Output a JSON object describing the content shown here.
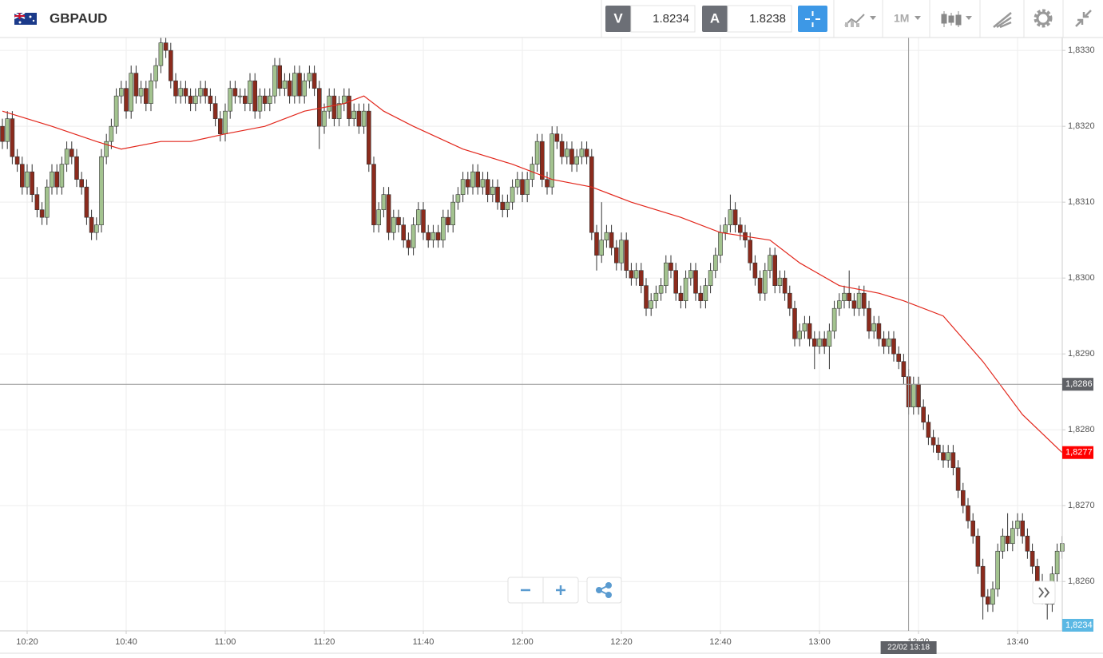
{
  "toolbar": {
    "symbol": "GBPAUD",
    "sell_label": "V",
    "sell": 1.8234,
    "buy_label": "A",
    "buy": 1.8238,
    "timeframe": "1M"
  },
  "chart_data": {
    "type": "candlestick",
    "categories": [
      "10:15",
      "10:16",
      "10:17",
      "10:18",
      "10:19",
      "10:20",
      "10:21",
      "10:22",
      "10:23",
      "10:24",
      "10:25",
      "10:26",
      "10:27",
      "10:28",
      "10:29",
      "10:30",
      "10:31",
      "10:32",
      "10:33",
      "10:34",
      "10:35",
      "10:36",
      "10:37",
      "10:38",
      "10:39",
      "10:40",
      "10:41",
      "10:42",
      "10:43",
      "10:44",
      "10:45",
      "10:46",
      "10:47",
      "10:48",
      "10:49",
      "10:50",
      "10:51",
      "10:52",
      "10:53",
      "10:54",
      "10:55",
      "10:56",
      "10:57",
      "10:58",
      "10:59",
      "11:00",
      "11:01",
      "11:02",
      "11:03",
      "11:04",
      "11:05",
      "11:06",
      "11:07",
      "11:08",
      "11:09",
      "11:10",
      "11:11",
      "11:12",
      "11:13",
      "11:14",
      "11:15",
      "11:16",
      "11:17",
      "11:18",
      "11:19",
      "11:20",
      "11:21",
      "11:22",
      "11:23",
      "11:24",
      "11:25",
      "11:26",
      "11:27",
      "11:28",
      "11:29",
      "11:30",
      "11:31",
      "11:32",
      "11:33",
      "11:34",
      "11:35",
      "11:36",
      "11:37",
      "11:38",
      "11:39",
      "11:40",
      "11:41",
      "11:42",
      "11:43",
      "11:44",
      "11:45",
      "11:46",
      "11:47",
      "11:48",
      "11:49",
      "11:50",
      "11:51",
      "11:52",
      "11:53",
      "11:54",
      "11:55",
      "11:56",
      "11:57",
      "11:58",
      "11:59",
      "12:00",
      "12:01",
      "12:02",
      "12:03",
      "12:04",
      "12:05",
      "12:06",
      "12:07",
      "12:08",
      "12:09",
      "12:10",
      "12:11",
      "12:12",
      "12:13",
      "12:14",
      "12:15",
      "12:16",
      "12:17",
      "12:18",
      "12:19",
      "12:20",
      "12:21",
      "12:22",
      "12:23",
      "12:24",
      "12:25",
      "12:26",
      "12:27",
      "12:28",
      "12:29",
      "12:30",
      "12:31",
      "12:32",
      "12:33",
      "12:34",
      "12:35",
      "12:36",
      "12:37",
      "12:38",
      "12:39",
      "12:40",
      "12:41",
      "12:42",
      "12:43",
      "12:44",
      "12:45",
      "12:46",
      "12:47",
      "12:48",
      "12:49",
      "12:50",
      "12:51",
      "12:52",
      "12:53",
      "12:54",
      "12:55",
      "12:56",
      "12:57",
      "12:58",
      "12:59",
      "13:00",
      "13:01",
      "13:02",
      "13:03",
      "13:04",
      "13:05",
      "13:06",
      "13:07",
      "13:08",
      "13:09",
      "13:10",
      "13:11",
      "13:12",
      "13:13",
      "13:14",
      "13:15",
      "13:16",
      "13:17",
      "13:18",
      "13:19",
      "13:20",
      "13:21",
      "13:22",
      "13:23",
      "13:24",
      "13:25",
      "13:26",
      "13:27",
      "13:28",
      "13:29",
      "13:30",
      "13:31",
      "13:32",
      "13:33",
      "13:34",
      "13:35",
      "13:36",
      "13:37",
      "13:38",
      "13:39",
      "13:40",
      "13:41",
      "13:42",
      "13:43",
      "13:44",
      "13:45",
      "13:46",
      "13:47",
      "13:48",
      "13:49"
    ],
    "open": [
      1.832,
      1.8318,
      1.8321,
      1.8316,
      1.8315,
      1.8312,
      1.8314,
      1.8311,
      1.8309,
      1.8308,
      1.8312,
      1.8314,
      1.8312,
      1.8315,
      1.8317,
      1.8316,
      1.8313,
      1.8312,
      1.8308,
      1.8306,
      1.8307,
      1.8316,
      1.8318,
      1.832,
      1.8324,
      1.8325,
      1.8322,
      1.8327,
      1.8324,
      1.8325,
      1.8323,
      1.8326,
      1.8328,
      1.8331,
      1.833,
      1.8326,
      1.8324,
      1.8325,
      1.8324,
      1.8323,
      1.8324,
      1.8325,
      1.8324,
      1.8323,
      1.8321,
      1.8319,
      1.8322,
      1.8325,
      1.8324,
      1.8324,
      1.8323,
      1.8326,
      1.8322,
      1.8324,
      1.8323,
      1.8324,
      1.8328,
      1.8325,
      1.8326,
      1.8324,
      1.8327,
      1.8324,
      1.8326,
      1.8327,
      1.8325,
      1.832,
      1.8322,
      1.8324,
      1.8321,
      1.8323,
      1.8324,
      1.8321,
      1.8322,
      1.832,
      1.8322,
      1.8315,
      1.8307,
      1.8309,
      1.8311,
      1.8306,
      1.8308,
      1.8307,
      1.8305,
      1.8304,
      1.8307,
      1.8309,
      1.8306,
      1.8305,
      1.8306,
      1.8305,
      1.8308,
      1.8307,
      1.831,
      1.8311,
      1.8313,
      1.8312,
      1.8314,
      1.8312,
      1.8313,
      1.8311,
      1.8312,
      1.831,
      1.8309,
      1.831,
      1.8312,
      1.8313,
      1.8311,
      1.8313,
      1.8315,
      1.8318,
      1.8313,
      1.8312,
      1.8319,
      1.8318,
      1.8316,
      1.8317,
      1.8315,
      1.8316,
      1.8317,
      1.8316,
      1.8306,
      1.8303,
      1.8305,
      1.8306,
      1.8304,
      1.8302,
      1.8305,
      1.8301,
      1.83,
      1.8301,
      1.8299,
      1.8296,
      1.8297,
      1.8298,
      1.8299,
      1.8302,
      1.8301,
      1.8298,
      1.8297,
      1.83,
      1.8301,
      1.8298,
      1.8297,
      1.8299,
      1.8301,
      1.8303,
      1.8306,
      1.8307,
      1.8309,
      1.8307,
      1.8306,
      1.8305,
      1.8302,
      1.83,
      1.8298,
      1.8301,
      1.8303,
      1.8299,
      1.83,
      1.8298,
      1.8296,
      1.8292,
      1.8293,
      1.8294,
      1.8292,
      1.8291,
      1.8292,
      1.8291,
      1.8293,
      1.8296,
      1.8297,
      1.8298,
      1.8297,
      1.8296,
      1.8298,
      1.8296,
      1.8293,
      1.8294,
      1.8292,
      1.8291,
      1.8292,
      1.829,
      1.8289,
      1.8287,
      1.8283,
      1.8286,
      1.8283,
      1.8281,
      1.8279,
      1.8278,
      1.8277,
      1.8276,
      1.8277,
      1.8275,
      1.8272,
      1.827,
      1.8268,
      1.8266,
      1.8262,
      1.8258,
      1.8257,
      1.8259,
      1.8264,
      1.8266,
      1.8265,
      1.8267,
      1.8268,
      1.8266,
      1.8264,
      1.8262,
      1.826,
      1.8258,
      1.8257,
      1.8261,
      1.8264
    ],
    "high": [
      1.8321,
      1.8322,
      1.8322,
      1.8317,
      1.8316,
      1.8315,
      1.8315,
      1.8312,
      1.831,
      1.8313,
      1.8315,
      1.8315,
      1.8316,
      1.8318,
      1.8318,
      1.8317,
      1.8314,
      1.8313,
      1.8309,
      1.8308,
      1.8317,
      1.8319,
      1.8321,
      1.8325,
      1.8326,
      1.8326,
      1.8328,
      1.8328,
      1.8326,
      1.8326,
      1.8327,
      1.8329,
      1.8332,
      1.8332,
      1.8331,
      1.8327,
      1.8326,
      1.8326,
      1.8325,
      1.8325,
      1.8326,
      1.8326,
      1.8325,
      1.8324,
      1.8322,
      1.8323,
      1.8326,
      1.8326,
      1.8325,
      1.8325,
      1.8327,
      1.8327,
      1.8325,
      1.8325,
      1.8325,
      1.8329,
      1.8329,
      1.8327,
      1.8327,
      1.8328,
      1.8328,
      1.8327,
      1.8328,
      1.8328,
      1.8326,
      1.8323,
      1.8325,
      1.8325,
      1.8324,
      1.8325,
      1.8325,
      1.8323,
      1.8323,
      1.8323,
      1.8323,
      1.8316,
      1.831,
      1.8312,
      1.8312,
      1.8309,
      1.8309,
      1.8308,
      1.8306,
      1.8308,
      1.831,
      1.831,
      1.8307,
      1.8307,
      1.8307,
      1.8309,
      1.8309,
      1.8311,
      1.8312,
      1.8314,
      1.8314,
      1.8315,
      1.8315,
      1.8314,
      1.8314,
      1.8313,
      1.8313,
      1.8311,
      1.8311,
      1.8313,
      1.8314,
      1.8314,
      1.8314,
      1.8316,
      1.8319,
      1.8319,
      1.8314,
      1.832,
      1.832,
      1.8319,
      1.8318,
      1.8318,
      1.8317,
      1.8318,
      1.8318,
      1.8317,
      1.8307,
      1.831,
      1.8307,
      1.8307,
      1.8305,
      1.8306,
      1.8306,
      1.8302,
      1.8302,
      1.8302,
      1.83,
      1.8298,
      1.8299,
      1.83,
      1.8303,
      1.8303,
      1.8302,
      1.8299,
      1.8301,
      1.8302,
      1.8302,
      1.8299,
      1.83,
      1.8302,
      1.8304,
      1.8307,
      1.8308,
      1.8311,
      1.831,
      1.8308,
      1.8307,
      1.8306,
      1.8303,
      1.8301,
      1.8302,
      1.8304,
      1.8304,
      1.8301,
      1.8301,
      1.8299,
      1.8297,
      1.8294,
      1.8295,
      1.8295,
      1.8293,
      1.8293,
      1.8293,
      1.8294,
      1.8297,
      1.8298,
      1.8299,
      1.8301,
      1.8298,
      1.8299,
      1.8299,
      1.8297,
      1.8295,
      1.8295,
      1.8293,
      1.8293,
      1.8293,
      1.8291,
      1.829,
      1.8288,
      1.8287,
      1.8287,
      1.8284,
      1.8282,
      1.828,
      1.8279,
      1.8278,
      1.8278,
      1.8278,
      1.8276,
      1.8273,
      1.8271,
      1.8269,
      1.8267,
      1.8263,
      1.8259,
      1.826,
      1.8265,
      1.8267,
      1.8269,
      1.8268,
      1.8269,
      1.8269,
      1.8267,
      1.8265,
      1.8263,
      1.8261,
      1.8259,
      1.8262,
      1.8265,
      1.8266
    ],
    "low": [
      1.8317,
      1.8317,
      1.8315,
      1.8314,
      1.8311,
      1.8311,
      1.831,
      1.8308,
      1.8307,
      1.8307,
      1.8311,
      1.8311,
      1.8311,
      1.8314,
      1.8315,
      1.8312,
      1.8311,
      1.8307,
      1.8305,
      1.8305,
      1.8306,
      1.8315,
      1.8317,
      1.8319,
      1.8323,
      1.8321,
      1.8321,
      1.8323,
      1.8323,
      1.8322,
      1.8322,
      1.8325,
      1.8327,
      1.8329,
      1.8325,
      1.8323,
      1.8323,
      1.8323,
      1.8322,
      1.8322,
      1.8323,
      1.8323,
      1.8322,
      1.832,
      1.8318,
      1.8318,
      1.8321,
      1.8323,
      1.8323,
      1.8322,
      1.8322,
      1.8321,
      1.8321,
      1.8322,
      1.8322,
      1.8323,
      1.8324,
      1.8324,
      1.8323,
      1.8323,
      1.8323,
      1.8323,
      1.8325,
      1.8324,
      1.8317,
      1.8319,
      1.8321,
      1.832,
      1.832,
      1.8322,
      1.832,
      1.832,
      1.8319,
      1.8319,
      1.8314,
      1.8306,
      1.8306,
      1.8308,
      1.8305,
      1.8305,
      1.8306,
      1.8304,
      1.8303,
      1.8303,
      1.8306,
      1.8305,
      1.8304,
      1.8304,
      1.8304,
      1.8304,
      1.8306,
      1.8306,
      1.8309,
      1.831,
      1.8311,
      1.8311,
      1.8311,
      1.8311,
      1.831,
      1.831,
      1.8309,
      1.8308,
      1.8308,
      1.8309,
      1.8311,
      1.831,
      1.831,
      1.8312,
      1.8314,
      1.8312,
      1.8311,
      1.8311,
      1.8317,
      1.8315,
      1.8315,
      1.8314,
      1.8314,
      1.8315,
      1.8315,
      1.8305,
      1.8301,
      1.8302,
      1.8304,
      1.8303,
      1.8301,
      1.8301,
      1.83,
      1.8299,
      1.8299,
      1.8298,
      1.8295,
      1.8295,
      1.8296,
      1.8297,
      1.8298,
      1.83,
      1.8297,
      1.8296,
      1.8296,
      1.8299,
      1.8297,
      1.8296,
      1.8296,
      1.8298,
      1.83,
      1.8302,
      1.8305,
      1.8306,
      1.8306,
      1.8305,
      1.8304,
      1.8301,
      1.8299,
      1.8297,
      1.8297,
      1.83,
      1.8298,
      1.8298,
      1.8297,
      1.8295,
      1.8291,
      1.8291,
      1.8292,
      1.8291,
      1.8288,
      1.829,
      1.829,
      1.8288,
      1.8292,
      1.8295,
      1.8296,
      1.8296,
      1.8295,
      1.8295,
      1.8295,
      1.8292,
      1.8292,
      1.8291,
      1.829,
      1.829,
      1.8289,
      1.8288,
      1.8286,
      1.8282,
      1.8282,
      1.8282,
      1.828,
      1.8278,
      1.8277,
      1.8276,
      1.8275,
      1.8275,
      1.8274,
      1.8271,
      1.8269,
      1.8267,
      1.8265,
      1.8261,
      1.8255,
      1.8256,
      1.8256,
      1.8258,
      1.8263,
      1.8264,
      1.8264,
      1.8266,
      1.8265,
      1.8263,
      1.8261,
      1.8259,
      1.8257,
      1.8255,
      1.8256,
      1.826,
      1.8263
    ],
    "close": [
      1.8318,
      1.8321,
      1.8316,
      1.8315,
      1.8312,
      1.8314,
      1.8311,
      1.8309,
      1.8308,
      1.8312,
      1.8314,
      1.8312,
      1.8315,
      1.8317,
      1.8316,
      1.8313,
      1.8312,
      1.8308,
      1.8306,
      1.8307,
      1.8316,
      1.8318,
      1.832,
      1.8324,
      1.8325,
      1.8322,
      1.8327,
      1.8324,
      1.8325,
      1.8323,
      1.8326,
      1.8328,
      1.8331,
      1.833,
      1.8326,
      1.8324,
      1.8325,
      1.8324,
      1.8323,
      1.8324,
      1.8325,
      1.8324,
      1.8323,
      1.8321,
      1.8319,
      1.8322,
      1.8325,
      1.8324,
      1.8324,
      1.8323,
      1.8326,
      1.8322,
      1.8324,
      1.8323,
      1.8324,
      1.8328,
      1.8325,
      1.8326,
      1.8324,
      1.8327,
      1.8324,
      1.8326,
      1.8327,
      1.8325,
      1.832,
      1.8322,
      1.8324,
      1.8321,
      1.8323,
      1.8324,
      1.8321,
      1.8322,
      1.832,
      1.8322,
      1.8315,
      1.8307,
      1.8309,
      1.8311,
      1.8306,
      1.8308,
      1.8307,
      1.8305,
      1.8304,
      1.8307,
      1.8309,
      1.8306,
      1.8305,
      1.8306,
      1.8305,
      1.8308,
      1.8307,
      1.831,
      1.8311,
      1.8313,
      1.8312,
      1.8314,
      1.8312,
      1.8313,
      1.8311,
      1.8312,
      1.831,
      1.8309,
      1.831,
      1.8312,
      1.8313,
      1.8311,
      1.8313,
      1.8315,
      1.8318,
      1.8313,
      1.8312,
      1.8319,
      1.8318,
      1.8316,
      1.8317,
      1.8315,
      1.8316,
      1.8317,
      1.8316,
      1.8306,
      1.8303,
      1.8305,
      1.8306,
      1.8304,
      1.8302,
      1.8305,
      1.8301,
      1.83,
      1.8301,
      1.8299,
      1.8296,
      1.8297,
      1.8298,
      1.8299,
      1.8302,
      1.8301,
      1.8298,
      1.8297,
      1.83,
      1.8301,
      1.8298,
      1.8297,
      1.8299,
      1.8301,
      1.8303,
      1.8306,
      1.8307,
      1.8309,
      1.8307,
      1.8306,
      1.8305,
      1.8302,
      1.83,
      1.8298,
      1.8301,
      1.8303,
      1.8299,
      1.83,
      1.8298,
      1.8296,
      1.8292,
      1.8293,
      1.8294,
      1.8292,
      1.8291,
      1.8292,
      1.8291,
      1.8293,
      1.8296,
      1.8297,
      1.8298,
      1.8297,
      1.8296,
      1.8298,
      1.8296,
      1.8293,
      1.8294,
      1.8292,
      1.8291,
      1.8292,
      1.829,
      1.8289,
      1.8287,
      1.8283,
      1.8286,
      1.8283,
      1.8281,
      1.8279,
      1.8278,
      1.8277,
      1.8276,
      1.8277,
      1.8275,
      1.8272,
      1.827,
      1.8268,
      1.8266,
      1.8262,
      1.8258,
      1.8257,
      1.8259,
      1.8264,
      1.8266,
      1.8265,
      1.8267,
      1.8268,
      1.8266,
      1.8264,
      1.8262,
      1.826,
      1.8258,
      1.8257,
      1.8261,
      1.8264,
      1.8265
    ],
    "up_color": "#a3c38f",
    "down_color": "#8b2b1d",
    "ma": {
      "x": [
        "10:15",
        "10:25",
        "10:34",
        "10:39",
        "10:47",
        "10:53",
        "11:00",
        "11:08",
        "11:16",
        "11:24",
        "11:28",
        "11:32",
        "11:38",
        "11:48",
        "11:58",
        "12:06",
        "12:14",
        "12:22",
        "12:32",
        "12:40",
        "12:50",
        "12:56",
        "13:04",
        "13:12",
        "13:17",
        "13:25",
        "13:33",
        "13:41",
        "13:49"
      ],
      "values": [
        1.8322,
        1.832,
        1.8318,
        1.8317,
        1.8318,
        1.8318,
        1.8319,
        1.832,
        1.8322,
        1.8323,
        1.8324,
        1.8322,
        1.832,
        1.8317,
        1.8315,
        1.8313,
        1.8312,
        1.831,
        1.8308,
        1.8306,
        1.8305,
        1.8302,
        1.8299,
        1.8298,
        1.8297,
        1.8295,
        1.8289,
        1.8282,
        1.8277
      ],
      "color": "#e2261b",
      "last": {
        "value": 1.8277,
        "label": "1,8277"
      }
    },
    "ylim": [
      1.82535,
      1.83317
    ],
    "yticks": [
      {
        "value": 1.826,
        "label": "1,8260"
      },
      {
        "value": 1.827,
        "label": "1,8270"
      },
      {
        "value": 1.828,
        "label": "1,8280"
      },
      {
        "value": 1.829,
        "label": "1,8290"
      },
      {
        "value": 1.83,
        "label": "1,8300"
      },
      {
        "value": 1.831,
        "label": "1,8310"
      },
      {
        "value": 1.832,
        "label": "1,8320"
      },
      {
        "value": 1.833,
        "label": "1,8330"
      }
    ],
    "xticks": [
      "10:20",
      "10:40",
      "11:00",
      "11:20",
      "11:40",
      "12:00",
      "12:20",
      "12:40",
      "13:00",
      "13:20",
      "13:40"
    ],
    "grid": true,
    "crosshair": {
      "x": "13:18",
      "label": "22/02 13:18",
      "y": {
        "value": 1.8286,
        "label": "1,8286"
      }
    },
    "last_price_label": "1,8234"
  }
}
